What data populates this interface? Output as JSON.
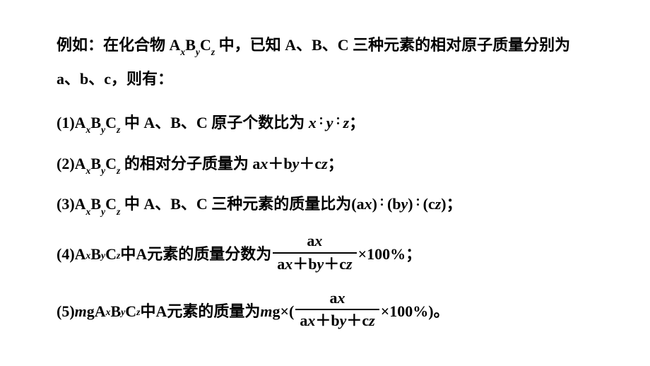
{
  "intro_prefix": "例如：在化合物 ",
  "intro_mid1": " 中，已知 ",
  "intro_elements": "A、B、C",
  "intro_mid2": " 三种元素的相对原子质量分别为 ",
  "intro_masses": "a、b、c",
  "intro_suffix": "，则有：",
  "compound": {
    "A": "A",
    "x": "x",
    "B": "B",
    "y": "y",
    "C": "C",
    "z": "z"
  },
  "line1": {
    "label": "(1)",
    "text1": " 中 ",
    "text2": "A、B、C",
    "text3": " 原子个数比为 ",
    "x": "x",
    "y": "y",
    "z": "z",
    "end": "；"
  },
  "line2": {
    "label": "(2)",
    "text1": " 的相对分子质量为 ",
    "expr_a": "a",
    "expr_x": "x",
    "plus": "＋",
    "expr_b": "b",
    "expr_y": "y",
    "expr_c": "c",
    "expr_z": "z",
    "end": "；"
  },
  "line3": {
    "label": "(3)",
    "text1": " 中 ",
    "text2": "A、B、C",
    "text3": " 三种元素的质量比为",
    "open": "(",
    "close": ")",
    "a": "a",
    "x": "x",
    "b": "b",
    "y": "y",
    "c": "c",
    "z": "z",
    "end": "；"
  },
  "line4": {
    "label": "(4)",
    "text1": " 中 ",
    "text2": "A",
    "text3": " 元素的质量分数为",
    "num_a": "a",
    "num_x": "x",
    "den_a": "a",
    "den_x": "x",
    "plus": "＋",
    "den_b": "b",
    "den_y": "y",
    "den_c": "c",
    "den_z": "z",
    "tail": "×100%",
    "end": "；"
  },
  "line5": {
    "label": "(5)",
    "m": "m",
    "g": " g ",
    "text1": " 中 ",
    "text2": "A",
    "text3": " 元素的质量为 ",
    "g2": " g×(",
    "num_a": "a",
    "num_x": "x",
    "den_a": "a",
    "den_x": "x",
    "plus": "＋",
    "den_b": "b",
    "den_y": "y",
    "den_c": "c",
    "den_z": "z",
    "tail": "×100%)",
    "end": "。"
  }
}
